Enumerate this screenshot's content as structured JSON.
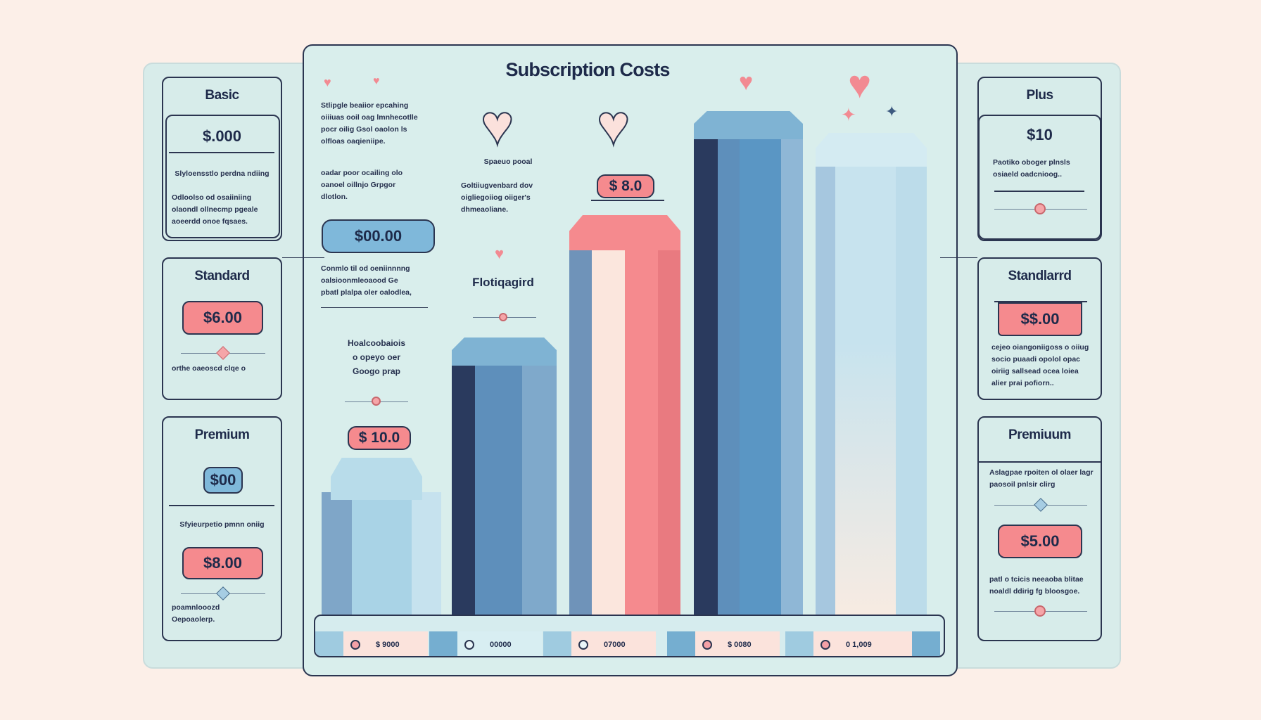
{
  "title": "Subscription Costs",
  "left_cards": [
    {
      "name": "Basic",
      "price": "$.000",
      "desc": "Slyloensstlo perdna ndiing",
      "bullets": [
        "Odloolso od osaiiniing",
        "olaondl ollnecmp pgeale",
        "aoeerdd onoe fqsaes."
      ]
    },
    {
      "name": "Standard",
      "price": "$6.00",
      "bullets": [
        "orthe oaeoscd clqe o"
      ]
    },
    {
      "name": "Premium",
      "price": "$00",
      "desc": "Sfyieurpetio pmnn oniig",
      "price2": "$8.00",
      "bullets": [
        "poamnlooozd",
        "Oepoaolerp."
      ]
    }
  ],
  "right_cards": [
    {
      "name": "Plus",
      "price": "$10",
      "desc": "Paotiko oboger plnsls osiaeld oadcnioog.."
    },
    {
      "name": "Standlarrd",
      "price": "$$.00",
      "desc": "cejeo oiangoniigoss o oiiug socio puaadi opolol opac oiriig sallsead ocea loiea alier prai pofiorn.."
    },
    {
      "name": "Premiuum",
      "desc": "Aslagpae rpoiten ol olaer lagr paosoil pnlsir clirg",
      "price": "$5.00",
      "desc2": "patl o tcicis neeaoba blitae noaldl ddirig fg bloosgoe."
    }
  ],
  "center": {
    "bullets_a": [
      "Stlipgle beaiior epcahing",
      "oiiiuas ooil oag lmnhecotlle",
      "pocr oilig Gsol oaolon ls",
      "olfloas oaqieniipe."
    ],
    "bullets_b": [
      "oadar poor ocailing olo",
      "oanoel oillnjo Grpgor",
      "dlotlon."
    ],
    "pill_price": "$00.00",
    "bullets_c": [
      "Conmlo til od oeniinnnng",
      "oalsioonmleoaood Ge",
      "pbatl plalpa oler oalodlea,"
    ],
    "caption_a": "Hoalcoobaiois",
    "caption_b": "o opeyo oer",
    "caption_c": "Googo prap",
    "tag_left": "$ 10.0",
    "heart_caption": "Spaeuo pooal",
    "bullets_d": [
      "Goltiiugvenbard dov",
      "oigliegoiiog oiiger's",
      "dhmeaoliane."
    ],
    "tag_right": "$ 8.0",
    "mid_label": "Flotiqagird"
  },
  "bottom_labels": [
    "$ 9000",
    "00000",
    "07000",
    "$ 0080",
    "0 1,009"
  ],
  "colors": {
    "background": "#fcefe8",
    "panel": "#d8ecea",
    "pink": "#f58a8e",
    "blue": "#5e96c4",
    "navy": "#2a3a5e"
  }
}
